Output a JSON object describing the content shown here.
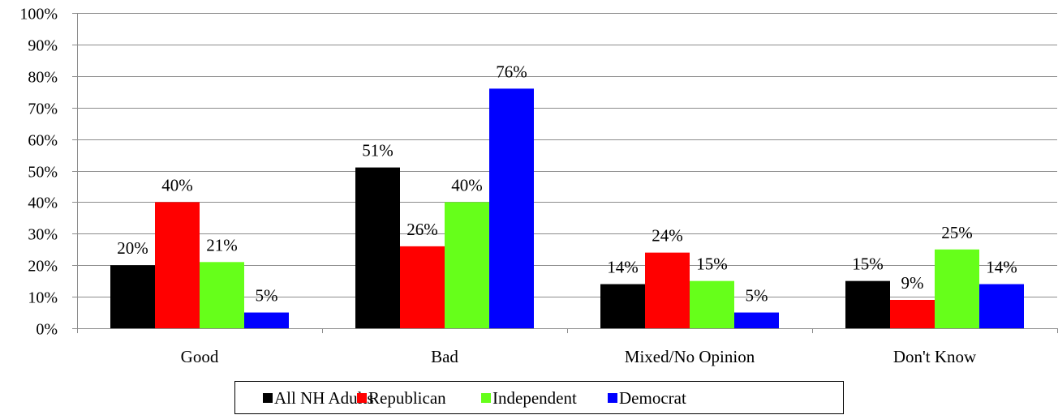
{
  "chart_data": {
    "type": "bar",
    "categories": [
      "Good",
      "Bad",
      "Mixed/No Opinion",
      "Don't Know"
    ],
    "series": [
      {
        "name": "All NH Adults",
        "color": "#000000",
        "values": [
          20,
          51,
          14,
          15
        ],
        "labels": [
          "20%",
          "51%",
          "14%",
          "15%"
        ]
      },
      {
        "name": "Republican",
        "color": "#ff0000",
        "values": [
          40,
          26,
          24,
          9
        ],
        "labels": [
          "40%",
          "26%",
          "24%",
          "9%"
        ]
      },
      {
        "name": "Independent",
        "color": "#66ff1a",
        "values": [
          21,
          40,
          15,
          25
        ],
        "labels": [
          "21%",
          "40%",
          "15%",
          "25%"
        ]
      },
      {
        "name": "Democrat",
        "color": "#0000ff",
        "values": [
          5,
          76,
          5,
          14
        ],
        "labels": [
          "5%",
          "76%",
          "5%",
          "14%"
        ]
      }
    ],
    "ylim": [
      0,
      100
    ],
    "yticks": [
      "0%",
      "10%",
      "20%",
      "30%",
      "40%",
      "50%",
      "60%",
      "70%",
      "80%",
      "90%",
      "100%"
    ],
    "grid": true,
    "legend_position": "bottom",
    "title": "",
    "xlabel": "",
    "ylabel": ""
  }
}
